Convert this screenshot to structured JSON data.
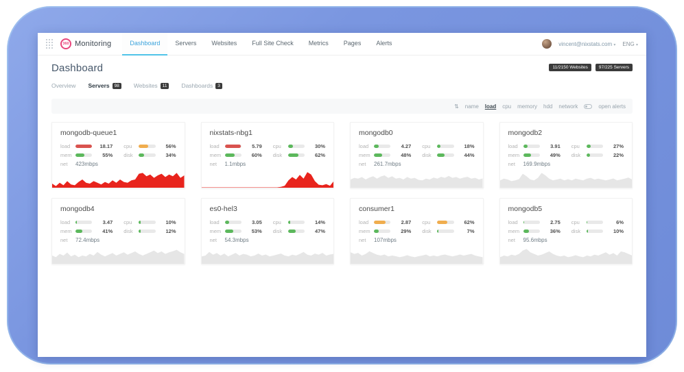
{
  "colors": {
    "accent_blue": "#3aa3dc",
    "brand_pink": "#e8457c",
    "status_red": "#d9534f",
    "status_orange": "#f0ad4e",
    "status_green": "#5cb85c",
    "spark_red": "#e8241d",
    "spark_gray": "#e6e6e6",
    "frame_blue": "#7a96e0"
  },
  "navbar": {
    "logo_badge": "360",
    "logo_text": "Monitoring",
    "tabs": [
      {
        "label": "Dashboard"
      },
      {
        "label": "Servers"
      },
      {
        "label": "Websites"
      },
      {
        "label": "Full Site Check"
      },
      {
        "label": "Metrics"
      },
      {
        "label": "Pages"
      },
      {
        "label": "Alerts"
      }
    ],
    "active_tab": "Dashboard",
    "user_email": "vincent@nixstats.com",
    "language": "ENG",
    "caret": "▾"
  },
  "header": {
    "title": "Dashboard",
    "badges": [
      "11/2150 Websites",
      "97/225 Servers"
    ]
  },
  "subtabs": [
    {
      "label": "Overview",
      "count": ""
    },
    {
      "label": "Servers",
      "count": "98"
    },
    {
      "label": "Websites",
      "count": "11"
    },
    {
      "label": "Dashboards",
      "count": "3"
    }
  ],
  "active_subtab": "Servers",
  "toolbar": {
    "sort_icon": "⇅",
    "sort_options": [
      "name",
      "load",
      "cpu",
      "memory",
      "hdd",
      "network"
    ],
    "active_sort": "load",
    "open_alerts_label": "open alerts"
  },
  "metric_labels": {
    "load": "load",
    "cpu": "cpu",
    "mem": "mem",
    "disk": "disk",
    "net": "net"
  },
  "cards": [
    {
      "name": "mongodb-queue1",
      "load": {
        "value": "18.17",
        "pct": 97,
        "color": "#d9534f"
      },
      "cpu": {
        "value": "56%",
        "pct": 56,
        "color": "#f0ad4e"
      },
      "mem": {
        "value": "55%",
        "pct": 55,
        "color": "#5cb85c"
      },
      "disk": {
        "value": "34%",
        "pct": 34,
        "color": "#5cb85c"
      },
      "net": "423mbps",
      "spark": {
        "color": "#e8241d",
        "points": [
          0.25,
          0.1,
          0.3,
          0.15,
          0.4,
          0.2,
          0.15,
          0.35,
          0.5,
          0.3,
          0.25,
          0.4,
          0.3,
          0.2,
          0.35,
          0.25,
          0.45,
          0.3,
          0.5,
          0.35,
          0.3,
          0.45,
          0.5,
          0.85,
          0.9,
          0.7,
          0.8,
          0.6,
          0.75,
          0.85,
          0.65,
          0.8,
          0.7,
          0.9,
          0.6,
          0.75
        ]
      }
    },
    {
      "name": "nixstats-nbg1",
      "load": {
        "value": "5.79",
        "pct": 97,
        "color": "#d9534f"
      },
      "cpu": {
        "value": "30%",
        "pct": 30,
        "color": "#5cb85c"
      },
      "mem": {
        "value": "60%",
        "pct": 60,
        "color": "#5cb85c"
      },
      "disk": {
        "value": "62%",
        "pct": 62,
        "color": "#5cb85c"
      },
      "net": "1.1mbps",
      "spark": {
        "color": "#e8241d",
        "points": [
          0.02,
          0.02,
          0.02,
          0.02,
          0.02,
          0.02,
          0.02,
          0.02,
          0.02,
          0.02,
          0.02,
          0.02,
          0.02,
          0.02,
          0.02,
          0.02,
          0.02,
          0.02,
          0.02,
          0.02,
          0.02,
          0.05,
          0.12,
          0.45,
          0.65,
          0.5,
          0.78,
          0.55,
          0.95,
          0.8,
          0.4,
          0.18,
          0.15,
          0.22,
          0.12,
          0.4
        ]
      }
    },
    {
      "name": "mongodb0",
      "load": {
        "value": "4.27",
        "pct": 30,
        "color": "#5cb85c"
      },
      "cpu": {
        "value": "18%",
        "pct": 18,
        "color": "#5cb85c"
      },
      "mem": {
        "value": "48%",
        "pct": 48,
        "color": "#5cb85c"
      },
      "disk": {
        "value": "44%",
        "pct": 44,
        "color": "#5cb85c"
      },
      "net": "261.7mbps",
      "spark": {
        "color": "#e6e6e6",
        "points": [
          0.5,
          0.6,
          0.55,
          0.65,
          0.5,
          0.62,
          0.7,
          0.55,
          0.68,
          0.75,
          0.6,
          0.7,
          0.55,
          0.6,
          0.5,
          0.65,
          0.55,
          0.6,
          0.48,
          0.45,
          0.55,
          0.5,
          0.62,
          0.55,
          0.66,
          0.6,
          0.72,
          0.6,
          0.65,
          0.55,
          0.62,
          0.66,
          0.55,
          0.6,
          0.5,
          0.56
        ]
      }
    },
    {
      "name": "mongodb2",
      "load": {
        "value": "3.91",
        "pct": 28,
        "color": "#5cb85c"
      },
      "cpu": {
        "value": "27%",
        "pct": 27,
        "color": "#5cb85c"
      },
      "mem": {
        "value": "49%",
        "pct": 49,
        "color": "#5cb85c"
      },
      "disk": {
        "value": "22%",
        "pct": 22,
        "color": "#5cb85c"
      },
      "net": "169.9mbps",
      "spark": {
        "color": "#e6e6e6",
        "points": [
          0.45,
          0.55,
          0.5,
          0.4,
          0.45,
          0.52,
          0.85,
          0.7,
          0.5,
          0.45,
          0.6,
          0.9,
          0.75,
          0.55,
          0.45,
          0.5,
          0.55,
          0.45,
          0.52,
          0.45,
          0.55,
          0.5,
          0.45,
          0.55,
          0.6,
          0.5,
          0.55,
          0.5,
          0.45,
          0.5,
          0.56,
          0.45,
          0.5,
          0.55,
          0.62,
          0.5
        ]
      }
    },
    {
      "name": "mongodb4",
      "load": {
        "value": "3.47",
        "pct": 8,
        "color": "#5cb85c"
      },
      "cpu": {
        "value": "10%",
        "pct": 10,
        "color": "#5cb85c"
      },
      "mem": {
        "value": "41%",
        "pct": 41,
        "color": "#5cb85c"
      },
      "disk": {
        "value": "12%",
        "pct": 12,
        "color": "#5cb85c"
      },
      "net": "72.4mbps",
      "spark": {
        "color": "#e6e6e6",
        "points": [
          0.5,
          0.4,
          0.6,
          0.5,
          0.68,
          0.45,
          0.55,
          0.4,
          0.5,
          0.45,
          0.6,
          0.5,
          0.72,
          0.55,
          0.45,
          0.55,
          0.65,
          0.5,
          0.6,
          0.7,
          0.55,
          0.65,
          0.75,
          0.6,
          0.5,
          0.6,
          0.7,
          0.8,
          0.65,
          0.75,
          0.6,
          0.7,
          0.76,
          0.85,
          0.7,
          0.6
        ]
      }
    },
    {
      "name": "es0-hel3",
      "load": {
        "value": "3.05",
        "pct": 26,
        "color": "#5cb85c"
      },
      "cpu": {
        "value": "14%",
        "pct": 14,
        "color": "#5cb85c"
      },
      "mem": {
        "value": "53%",
        "pct": 53,
        "color": "#5cb85c"
      },
      "disk": {
        "value": "47%",
        "pct": 47,
        "color": "#5cb85c"
      },
      "net": "54.3mbps",
      "spark": {
        "color": "#e6e6e6",
        "points": [
          0.45,
          0.5,
          0.72,
          0.55,
          0.65,
          0.5,
          0.62,
          0.45,
          0.55,
          0.66,
          0.5,
          0.6,
          0.55,
          0.45,
          0.5,
          0.62,
          0.5,
          0.56,
          0.45,
          0.5,
          0.56,
          0.62,
          0.5,
          0.45,
          0.55,
          0.5,
          0.6,
          0.72,
          0.55,
          0.5,
          0.62,
          0.55,
          0.66,
          0.5,
          0.56,
          0.6
        ]
      }
    },
    {
      "name": "consumer1",
      "load": {
        "value": "2.87",
        "pct": 72,
        "color": "#f0ad4e"
      },
      "cpu": {
        "value": "62%",
        "pct": 62,
        "color": "#f0ad4e"
      },
      "mem": {
        "value": "29%",
        "pct": 29,
        "color": "#5cb85c"
      },
      "disk": {
        "value": "7%",
        "pct": 7,
        "color": "#5cb85c"
      },
      "net": "107mbps",
      "spark": {
        "color": "#e6e6e6",
        "points": [
          0.7,
          0.6,
          0.66,
          0.5,
          0.6,
          0.76,
          0.65,
          0.55,
          0.5,
          0.56,
          0.45,
          0.5,
          0.46,
          0.4,
          0.45,
          0.52,
          0.45,
          0.4,
          0.46,
          0.5,
          0.56,
          0.45,
          0.5,
          0.45,
          0.52,
          0.56,
          0.5,
          0.45,
          0.5,
          0.56,
          0.5,
          0.55,
          0.6,
          0.5,
          0.45,
          0.4
        ]
      }
    },
    {
      "name": "mongodb5",
      "load": {
        "value": "2.75",
        "pct": 8,
        "color": "#5cb85c"
      },
      "cpu": {
        "value": "6%",
        "pct": 6,
        "color": "#5cb85c"
      },
      "mem": {
        "value": "36%",
        "pct": 36,
        "color": "#5cb85c"
      },
      "disk": {
        "value": "10%",
        "pct": 10,
        "color": "#5cb85c"
      },
      "net": "95.6mbps",
      "spark": {
        "color": "#e6e6e6",
        "points": [
          0.4,
          0.5,
          0.45,
          0.55,
          0.5,
          0.6,
          0.8,
          0.9,
          0.7,
          0.6,
          0.5,
          0.55,
          0.65,
          0.75,
          0.6,
          0.5,
          0.45,
          0.5,
          0.4,
          0.45,
          0.52,
          0.45,
          0.4,
          0.5,
          0.45,
          0.55,
          0.5,
          0.6,
          0.7,
          0.55,
          0.65,
          0.5,
          0.75,
          0.7,
          0.6,
          0.5
        ]
      }
    }
  ]
}
